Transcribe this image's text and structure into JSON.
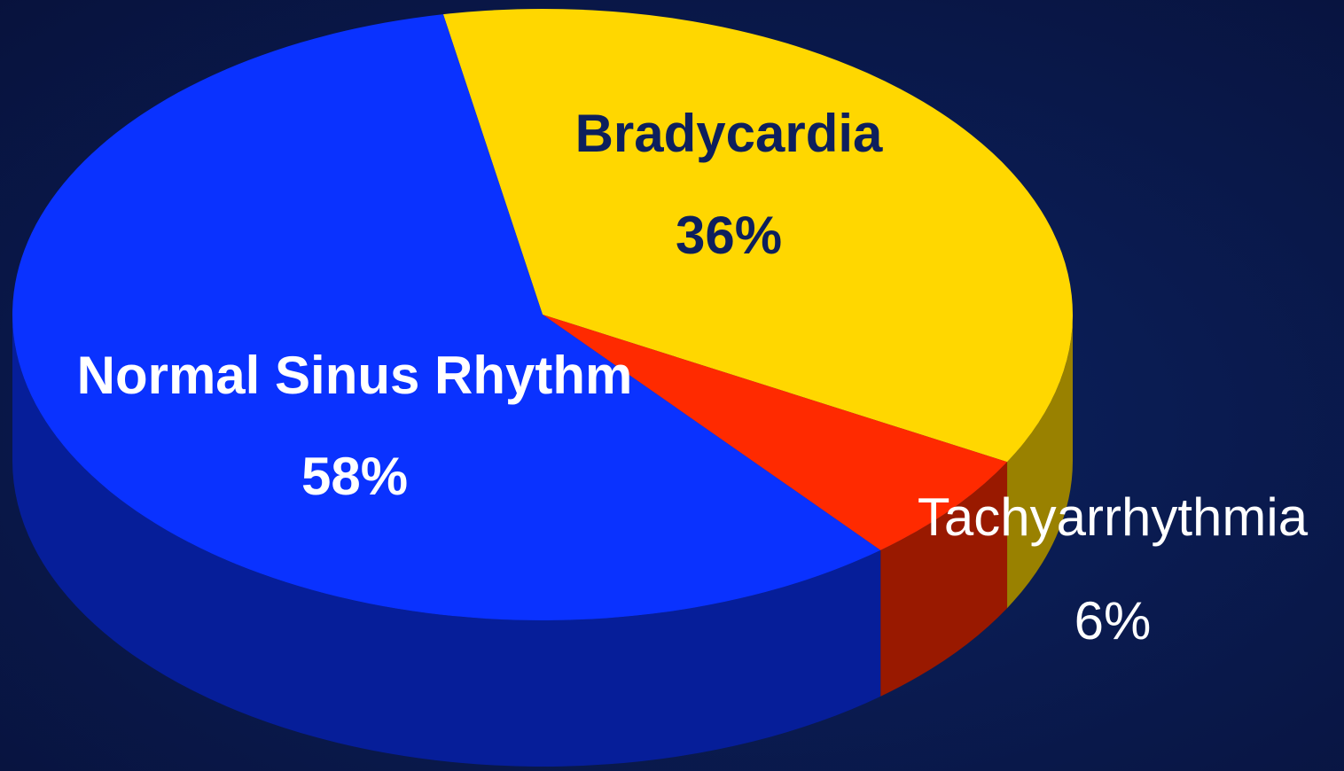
{
  "chart_data": {
    "type": "pie",
    "categories": [
      "Bradycardia",
      "Tachyarrhythmia",
      "Normal Sinus Rhythm"
    ],
    "values": [
      36,
      6,
      58
    ],
    "value_labels": [
      "36%",
      "6%",
      "58%"
    ],
    "colors": [
      "#ffd700",
      "#ff2a00",
      "#0a32ff"
    ]
  }
}
